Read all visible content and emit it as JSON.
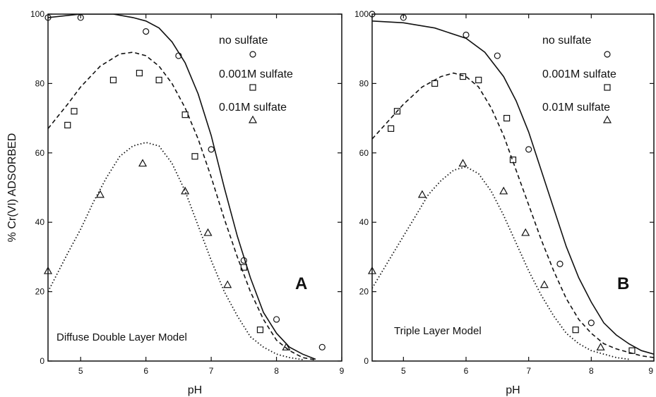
{
  "chart_data": [
    {
      "type": "line",
      "panel_label": "A",
      "model_label": "Diffuse Double Layer Model",
      "xlabel": "pH",
      "ylabel": "% Cr(VI) ADSORBED",
      "xlim": [
        4.5,
        9
      ],
      "ylim": [
        0,
        100
      ],
      "xticks": [
        5,
        6,
        7,
        8,
        9
      ],
      "yticks": [
        0,
        20,
        40,
        60,
        80,
        100
      ],
      "legend": [
        "no sulfate",
        "0.001M sulfate",
        "0.01M sulfate"
      ],
      "series": [
        {
          "name": "no sulfate",
          "marker": "circle",
          "line_style": "solid",
          "points": [
            [
              4.5,
              99
            ],
            [
              5.0,
              99
            ],
            [
              6.0,
              95
            ],
            [
              6.5,
              88
            ],
            [
              7.0,
              61
            ],
            [
              7.5,
              29
            ],
            [
              8.0,
              12
            ],
            [
              8.7,
              4
            ]
          ],
          "curve": [
            [
              4.5,
              99
            ],
            [
              5.0,
              100
            ],
            [
              5.5,
              100
            ],
            [
              5.8,
              99
            ],
            [
              6.0,
              98
            ],
            [
              6.2,
              96
            ],
            [
              6.4,
              92
            ],
            [
              6.6,
              86
            ],
            [
              6.8,
              77
            ],
            [
              7.0,
              65
            ],
            [
              7.2,
              50
            ],
            [
              7.4,
              36
            ],
            [
              7.6,
              24
            ],
            [
              7.8,
              14
            ],
            [
              8.0,
              8
            ],
            [
              8.2,
              4
            ],
            [
              8.4,
              2
            ],
            [
              8.6,
              0.5
            ]
          ]
        },
        {
          "name": "0.001M sulfate",
          "marker": "square",
          "line_style": "dashed",
          "points": [
            [
              4.8,
              68
            ],
            [
              4.9,
              72
            ],
            [
              5.5,
              81
            ],
            [
              5.9,
              83
            ],
            [
              6.2,
              81
            ],
            [
              6.6,
              71
            ],
            [
              6.75,
              59
            ],
            [
              7.5,
              27
            ],
            [
              7.75,
              9
            ]
          ],
          "curve": [
            [
              4.5,
              67
            ],
            [
              4.8,
              74
            ],
            [
              5.0,
              79
            ],
            [
              5.3,
              85
            ],
            [
              5.6,
              88.5
            ],
            [
              5.8,
              89
            ],
            [
              6.0,
              88
            ],
            [
              6.2,
              85
            ],
            [
              6.4,
              80
            ],
            [
              6.6,
              73
            ],
            [
              6.8,
              64
            ],
            [
              7.0,
              53
            ],
            [
              7.2,
              41
            ],
            [
              7.4,
              30
            ],
            [
              7.6,
              20
            ],
            [
              7.8,
              12
            ],
            [
              8.0,
              6
            ],
            [
              8.2,
              3
            ],
            [
              8.4,
              1
            ],
            [
              8.6,
              0.3
            ]
          ]
        },
        {
          "name": "0.01M sulfate",
          "marker": "triangle",
          "line_style": "dotted",
          "points": [
            [
              4.5,
              26
            ],
            [
              5.3,
              48
            ],
            [
              5.95,
              57
            ],
            [
              6.6,
              49
            ],
            [
              6.95,
              37
            ],
            [
              7.25,
              22
            ],
            [
              8.15,
              4
            ]
          ],
          "curve": [
            [
              4.5,
              20
            ],
            [
              4.8,
              31
            ],
            [
              5.0,
              38
            ],
            [
              5.2,
              46
            ],
            [
              5.4,
              53
            ],
            [
              5.6,
              59
            ],
            [
              5.8,
              62
            ],
            [
              6.0,
              63
            ],
            [
              6.2,
              62
            ],
            [
              6.4,
              57
            ],
            [
              6.6,
              49
            ],
            [
              6.8,
              39
            ],
            [
              7.0,
              29
            ],
            [
              7.2,
              20
            ],
            [
              7.4,
              13
            ],
            [
              7.6,
              7
            ],
            [
              7.8,
              4
            ],
            [
              8.0,
              2
            ],
            [
              8.2,
              1
            ],
            [
              8.4,
              0.4
            ]
          ]
        }
      ]
    },
    {
      "type": "line",
      "panel_label": "B",
      "model_label": "Triple Layer Model",
      "xlabel": "pH",
      "ylabel": "",
      "xlim": [
        4.5,
        9
      ],
      "ylim": [
        0,
        100
      ],
      "xticks": [
        5,
        6,
        7,
        8,
        9
      ],
      "yticks": [
        0,
        20,
        40,
        60,
        80,
        100
      ],
      "legend": [
        "no sulfate",
        "0.001M sulfate",
        "0.01M sulfate"
      ],
      "series": [
        {
          "name": "no sulfate",
          "marker": "circle",
          "line_style": "solid",
          "points": [
            [
              4.5,
              100
            ],
            [
              5.0,
              99
            ],
            [
              6.0,
              94
            ],
            [
              6.5,
              88
            ],
            [
              7.0,
              61
            ],
            [
              7.5,
              28
            ],
            [
              8.0,
              11
            ]
          ],
          "curve": [
            [
              4.5,
              98
            ],
            [
              5.0,
              97.5
            ],
            [
              5.5,
              96
            ],
            [
              6.0,
              93
            ],
            [
              6.3,
              89
            ],
            [
              6.6,
              82
            ],
            [
              6.8,
              75
            ],
            [
              7.0,
              66
            ],
            [
              7.2,
              55
            ],
            [
              7.4,
              44
            ],
            [
              7.6,
              33
            ],
            [
              7.8,
              24
            ],
            [
              8.0,
              17
            ],
            [
              8.2,
              11
            ],
            [
              8.4,
              7.5
            ],
            [
              8.6,
              5
            ],
            [
              8.8,
              3
            ],
            [
              9.0,
              2
            ]
          ]
        },
        {
          "name": "0.001M sulfate",
          "marker": "square",
          "line_style": "dashed",
          "points": [
            [
              4.8,
              67
            ],
            [
              4.9,
              72
            ],
            [
              5.5,
              80
            ],
            [
              5.95,
              82
            ],
            [
              6.2,
              81
            ],
            [
              6.65,
              70
            ],
            [
              6.75,
              58
            ],
            [
              7.75,
              9
            ],
            [
              8.65,
              3
            ]
          ],
          "curve": [
            [
              4.5,
              64
            ],
            [
              4.8,
              70
            ],
            [
              5.0,
              74
            ],
            [
              5.3,
              79
            ],
            [
              5.6,
              82
            ],
            [
              5.8,
              83
            ],
            [
              6.0,
              82
            ],
            [
              6.2,
              79
            ],
            [
              6.4,
              73
            ],
            [
              6.6,
              65
            ],
            [
              6.8,
              55
            ],
            [
              7.0,
              45
            ],
            [
              7.2,
              35
            ],
            [
              7.4,
              26
            ],
            [
              7.6,
              18
            ],
            [
              7.8,
              12
            ],
            [
              8.0,
              8
            ],
            [
              8.2,
              5
            ],
            [
              8.4,
              3.5
            ],
            [
              8.6,
              2.5
            ],
            [
              8.8,
              1.5
            ],
            [
              9.0,
              1
            ]
          ]
        },
        {
          "name": "0.01M sulfate",
          "marker": "triangle",
          "line_style": "dotted",
          "points": [
            [
              4.5,
              26
            ],
            [
              5.3,
              48
            ],
            [
              5.95,
              57
            ],
            [
              6.6,
              49
            ],
            [
              6.95,
              37
            ],
            [
              7.25,
              22
            ],
            [
              8.15,
              4
            ]
          ],
          "curve": [
            [
              4.5,
              21
            ],
            [
              4.8,
              30
            ],
            [
              5.0,
              36
            ],
            [
              5.2,
              42
            ],
            [
              5.4,
              48
            ],
            [
              5.6,
              52
            ],
            [
              5.8,
              55
            ],
            [
              6.0,
              56
            ],
            [
              6.2,
              54
            ],
            [
              6.4,
              49
            ],
            [
              6.6,
              42
            ],
            [
              6.8,
              34
            ],
            [
              7.0,
              26
            ],
            [
              7.2,
              19
            ],
            [
              7.4,
              13
            ],
            [
              7.6,
              8
            ],
            [
              7.8,
              5
            ],
            [
              8.0,
              3
            ],
            [
              8.2,
              2
            ],
            [
              8.4,
              1
            ],
            [
              8.6,
              0.5
            ]
          ]
        }
      ]
    }
  ]
}
